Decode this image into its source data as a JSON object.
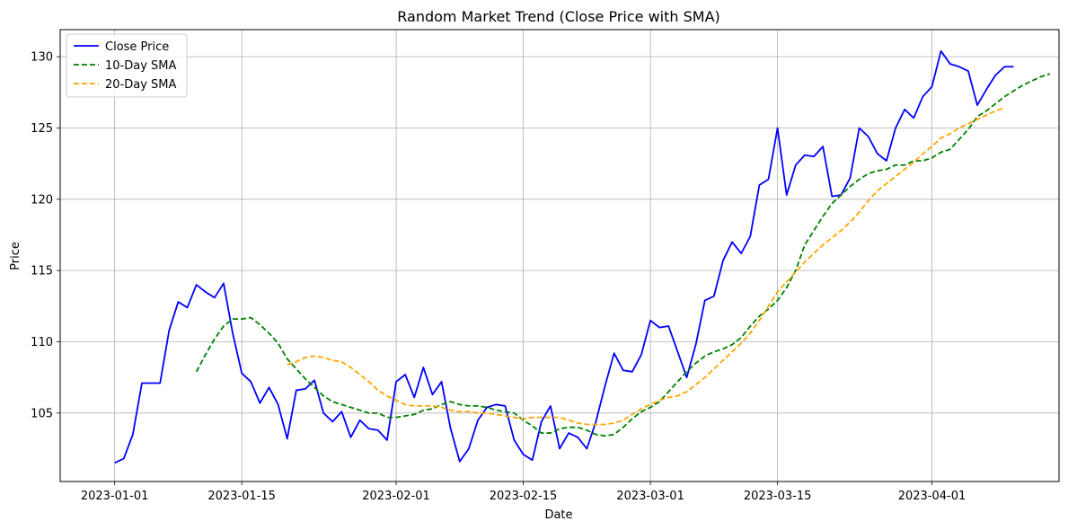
{
  "chart_data": {
    "type": "line",
    "title": "Random Market Trend (Close Price with SMA)",
    "xlabel": "Date",
    "ylabel": "Price",
    "x_start": "2023-01-01",
    "x_end": "2023-04-10",
    "xlim": [
      "2022-12-26",
      "2023-04-15"
    ],
    "ylim": [
      100.2,
      131.9
    ],
    "x_ticks": [
      "2023-01-01",
      "2023-01-15",
      "2023-02-01",
      "2023-02-15",
      "2023-03-01",
      "2023-03-15",
      "2023-04-01"
    ],
    "y_ticks": [
      105,
      110,
      115,
      120,
      125,
      130
    ],
    "grid": true,
    "legend_position": "top-left",
    "series": [
      {
        "name": "Close Price",
        "color": "#0000ff",
        "style": "solid",
        "start_date": "2023-01-01",
        "values": [
          101.5,
          101.8,
          103.5,
          107.1,
          107.1,
          107.1,
          110.8,
          112.8,
          112.4,
          114.0,
          113.5,
          113.1,
          114.1,
          110.6,
          107.8,
          107.2,
          105.7,
          106.8,
          105.6,
          103.2,
          106.6,
          106.7,
          107.3,
          105.0,
          104.4,
          105.1,
          103.3,
          104.5,
          103.9,
          103.8,
          103.1,
          107.2,
          107.7,
          106.1,
          108.2,
          106.3,
          107.2,
          103.9,
          101.6,
          102.5,
          104.5,
          105.4,
          105.6,
          105.5,
          103.1,
          102.1,
          101.7,
          104.4,
          105.5,
          102.5,
          103.6,
          103.3,
          102.5,
          104.4,
          106.9,
          109.2,
          108.0,
          107.9,
          109.1,
          111.5,
          111.0,
          111.1,
          109.3,
          107.5,
          109.8,
          112.9,
          113.2,
          115.7,
          117.0,
          116.2,
          117.4,
          121.0,
          121.4,
          125.0,
          120.3,
          122.4,
          123.1,
          123.0,
          123.7,
          120.2,
          120.3,
          121.5,
          125.0,
          124.4,
          123.2,
          122.7,
          125.0,
          126.3,
          125.7,
          127.2,
          127.9,
          130.4,
          129.5,
          129.3,
          129.0,
          126.6,
          127.7,
          128.7,
          129.3,
          129.3
        ]
      },
      {
        "name": "10-Day SMA",
        "color": "#008000",
        "style": "dashed",
        "start_date": "2023-01-10",
        "values": [
          107.9,
          109.1,
          110.2,
          111.1,
          111.6,
          111.6,
          111.7,
          111.2,
          110.6,
          109.9,
          108.8,
          108.1,
          107.4,
          106.8,
          106.2,
          105.8,
          105.6,
          105.4,
          105.2,
          105.0,
          105.0,
          104.7,
          104.7,
          104.8,
          104.9,
          105.2,
          105.3,
          105.6,
          105.8,
          105.6,
          105.5,
          105.5,
          105.4,
          105.2,
          105.1,
          105.0,
          104.5,
          104.1,
          103.6,
          103.6,
          103.9,
          104.0,
          104.0,
          103.8,
          103.5,
          103.4,
          103.5,
          104.0,
          104.6,
          105.1,
          105.4,
          105.8,
          106.5,
          107.2,
          107.9,
          108.5,
          109.0,
          109.3,
          109.5,
          109.8,
          110.3,
          111.1,
          111.8,
          112.3,
          112.9,
          113.8,
          115.0,
          116.8,
          117.8,
          118.8,
          119.7,
          120.3,
          120.9,
          121.4,
          121.8,
          122.0,
          122.1,
          122.4,
          122.4,
          122.7,
          122.7,
          122.9,
          123.3,
          123.5,
          124.2,
          124.9,
          125.8,
          126.2,
          126.7,
          127.2,
          127.6,
          128.0,
          128.3,
          128.6,
          128.8
        ]
      },
      {
        "name": "20-Day SMA",
        "color": "#ffa500",
        "style": "dashed",
        "start_date": "2023-01-20",
        "values": [
          108.4,
          108.6,
          108.9,
          109.0,
          108.9,
          108.7,
          108.6,
          108.2,
          107.7,
          107.2,
          106.6,
          106.2,
          105.9,
          105.6,
          105.5,
          105.5,
          105.5,
          105.4,
          105.2,
          105.1,
          105.1,
          105.0,
          105.0,
          104.9,
          104.8,
          104.7,
          104.6,
          104.7,
          104.7,
          104.7,
          104.7,
          104.5,
          104.3,
          104.2,
          104.2,
          104.2,
          104.3,
          104.5,
          104.9,
          105.3,
          105.6,
          105.9,
          106.1,
          106.2,
          106.5,
          107.0,
          107.5,
          108.1,
          108.7,
          109.3,
          109.9,
          110.6,
          111.5,
          112.5,
          113.5,
          114.2,
          114.9,
          115.6,
          116.2,
          116.8,
          117.3,
          117.8,
          118.4,
          119.1,
          119.9,
          120.6,
          121.1,
          121.6,
          122.1,
          122.6,
          123.2,
          123.7,
          124.3,
          124.6,
          125.0,
          125.3,
          125.6,
          125.9,
          126.2,
          126.4
        ]
      }
    ]
  }
}
